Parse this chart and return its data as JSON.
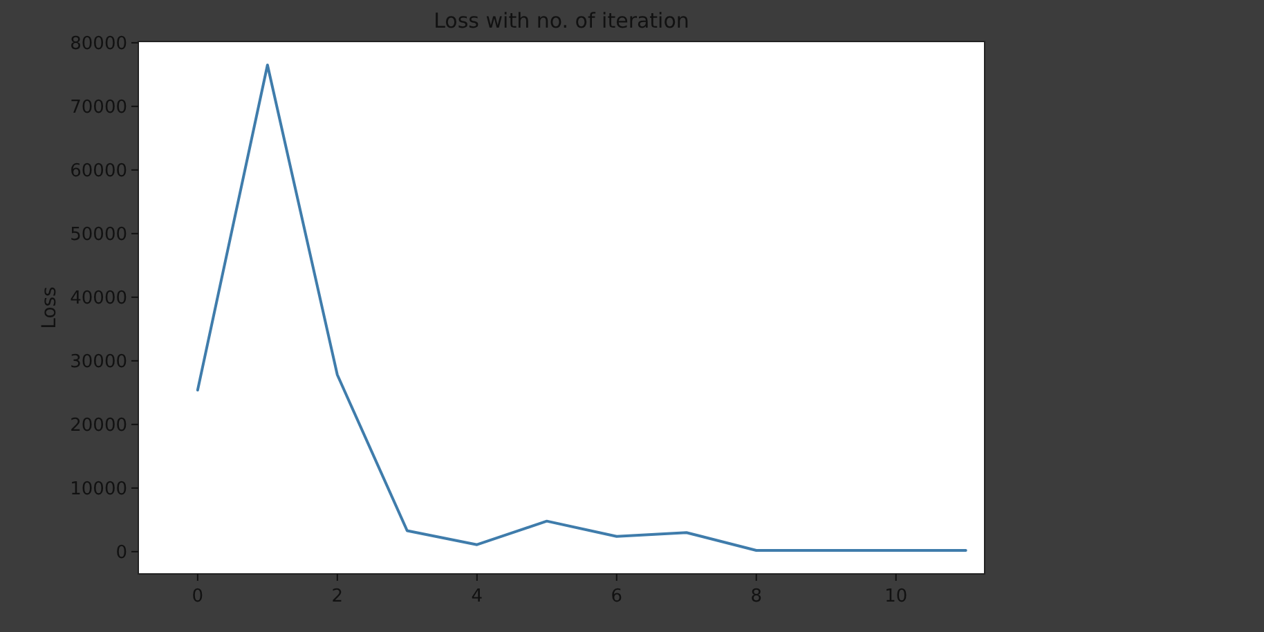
{
  "chart_data": {
    "type": "line",
    "title": "Loss with no. of iteration",
    "ylabel": "Loss",
    "x": [
      0,
      1,
      2,
      3,
      4,
      5,
      6,
      7,
      8,
      9,
      10,
      11
    ],
    "series": [
      {
        "color": "#3f7cab",
        "values": [
          25400,
          76500,
          27800,
          3300,
          1100,
          4800,
          2400,
          3000,
          200,
          200,
          200,
          200
        ]
      }
    ],
    "xlim": [
      -0.85,
      11.27
    ],
    "ylim": [
      -3500,
      80200
    ],
    "xticks": [
      0,
      2,
      4,
      6,
      8,
      10
    ],
    "yticks": [
      0,
      10000,
      20000,
      30000,
      40000,
      50000,
      60000,
      70000,
      80000
    ],
    "grid": false,
    "marker": "none",
    "line_style": "solid"
  }
}
